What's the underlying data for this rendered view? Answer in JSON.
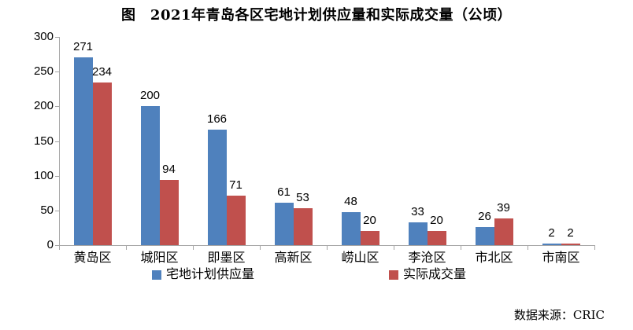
{
  "title": "图　2021年青岛各区宅地计划供应量和实际成交量（公顷）",
  "source": "数据来源：CRIC",
  "colors": {
    "supply_blue": "#4F81BD",
    "transaction_red": "#C0504D",
    "axis_gray": "#A6A6A6",
    "text_black": "#000000",
    "background": "#FFFFFF"
  },
  "chart_data": {
    "type": "bar",
    "title": "图　2021年青岛各区宅地计划供应量和实际成交量（公顷）",
    "categories": [
      "黄岛区",
      "城阳区",
      "即墨区",
      "高新区",
      "崂山区",
      "李沧区",
      "市北区",
      "市南区"
    ],
    "series": [
      {
        "key": "planned-supply",
        "name": "宅地计划供应量",
        "color": "#4F81BD",
        "values": [
          271,
          200,
          166,
          61,
          48,
          33,
          26,
          2
        ]
      },
      {
        "key": "actual-transaction",
        "name": "实际成交量",
        "color": "#C0504D",
        "values": [
          234,
          94,
          71,
          53,
          20,
          20,
          39,
          2
        ]
      }
    ],
    "xlabel": "",
    "ylabel": "",
    "ylim": [
      0,
      300
    ],
    "yticks": [
      0,
      50,
      100,
      150,
      200,
      250,
      300
    ],
    "grid": false,
    "data_labels": true,
    "legend_position": "bottom",
    "unit": "公顷",
    "source_note": "数据来源：CRIC"
  }
}
